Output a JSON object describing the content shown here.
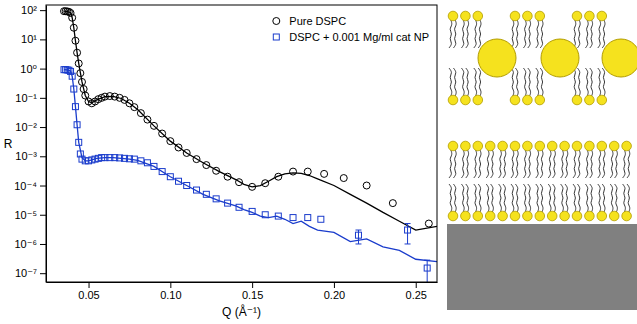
{
  "chart_data": {
    "type": "scatter",
    "x_label": "Q (Å⁻¹)",
    "y_label": "R",
    "log": "y",
    "grid": false,
    "legend": "upper right",
    "xlim": [
      0.024,
      0.263
    ],
    "ylim": [
      5e-08,
      150
    ],
    "xticks": [
      0.05,
      {
        "value": 0.1,
        "label": "0.10"
      },
      0.15,
      {
        "value": 0.2,
        "label": "0.20"
      },
      0.25
    ],
    "yticks": [
      {
        "value": 100,
        "label": "10²"
      },
      {
        "value": 10,
        "label": "10¹"
      },
      {
        "value": 1,
        "label": "10⁰"
      },
      {
        "value": 0.1,
        "label": "10⁻¹"
      },
      {
        "value": 0.01,
        "label": "10⁻²"
      },
      {
        "value": 0.001,
        "label": "10⁻³"
      },
      {
        "value": 0.0001,
        "label": "10⁻⁴"
      },
      {
        "value": 1e-05,
        "label": "10⁻⁵"
      },
      {
        "value": 1e-06,
        "label": "10⁻⁶"
      },
      {
        "value": 1e-07,
        "label": "10⁻⁷"
      }
    ],
    "series": [
      {
        "name": "Pure DSPC",
        "type": "scatter",
        "marker": "circle",
        "color": "#000000",
        "x": [
          0.035,
          0.036,
          0.037,
          0.038,
          0.039,
          0.04,
          0.041,
          0.042,
          0.043,
          0.044,
          0.045,
          0.046,
          0.047,
          0.048,
          0.05,
          0.052,
          0.054,
          0.056,
          0.058,
          0.06,
          0.063,
          0.066,
          0.069,
          0.072,
          0.075,
          0.078,
          0.082,
          0.086,
          0.09,
          0.095,
          0.1,
          0.105,
          0.11,
          0.116,
          0.122,
          0.128,
          0.135,
          0.142,
          0.15,
          0.158,
          0.166,
          0.175,
          0.184,
          0.194,
          0.206,
          0.22,
          0.236,
          0.258
        ],
        "values": [
          92,
          92,
          90,
          88,
          80,
          55,
          25,
          9,
          3.5,
          1.5,
          0.7,
          0.35,
          0.2,
          0.12,
          0.075,
          0.065,
          0.075,
          0.09,
          0.1,
          0.11,
          0.115,
          0.11,
          0.1,
          0.085,
          0.065,
          0.048,
          0.03,
          0.018,
          0.011,
          0.006,
          0.0033,
          0.002,
          0.0013,
          0.0008,
          0.0005,
          0.00032,
          0.0002,
          0.00013,
          9e-05,
          0.00012,
          0.0002,
          0.0003,
          0.0003,
          0.00025,
          0.00018,
          0.0001,
          2.5e-05,
          5e-06
        ]
      },
      {
        "name": "DSPC + 0.001 Mg/ml cat NP",
        "type": "scatter",
        "marker": "square",
        "color": "#1a3ccc",
        "x": [
          0.035,
          0.036,
          0.037,
          0.038,
          0.039,
          0.04,
          0.041,
          0.042,
          0.043,
          0.044,
          0.045,
          0.046,
          0.048,
          0.05,
          0.052,
          0.054,
          0.056,
          0.058,
          0.06,
          0.063,
          0.066,
          0.069,
          0.072,
          0.075,
          0.078,
          0.082,
          0.086,
          0.09,
          0.095,
          0.1,
          0.105,
          0.11,
          0.116,
          0.122,
          0.128,
          0.135,
          0.142,
          0.15,
          0.158,
          0.166,
          0.175,
          0.184,
          0.192,
          0.215,
          0.245,
          0.257
        ],
        "values": [
          0.92,
          0.92,
          0.9,
          0.88,
          0.8,
          0.55,
          0.2,
          0.05,
          0.012,
          0.003,
          0.0012,
          0.0008,
          0.0007,
          0.0007,
          0.00075,
          0.0008,
          0.00085,
          0.0009,
          0.0009,
          0.0009,
          0.0009,
          0.00088,
          0.00085,
          0.00082,
          0.0008,
          0.0007,
          0.0006,
          0.00045,
          0.0003,
          0.0002,
          0.00014,
          0.0001,
          7e-05,
          5e-05,
          3.5e-05,
          2.5e-05,
          1.8e-05,
          1.3e-05,
          1e-05,
          9e-06,
          8e-06,
          8e-06,
          7e-06,
          2e-06,
          3e-06,
          1.5e-07
        ],
        "errors": [
          null,
          null,
          null,
          null,
          null,
          null,
          null,
          null,
          null,
          null,
          null,
          null,
          null,
          null,
          null,
          null,
          null,
          null,
          null,
          null,
          null,
          null,
          null,
          null,
          null,
          null,
          null,
          null,
          null,
          null,
          null,
          null,
          null,
          null,
          null,
          null,
          null,
          null,
          null,
          null,
          null,
          null,
          null,
          1e-06,
          2e-06,
          1.3e-07
        ]
      },
      {
        "type": "line",
        "line_style": "solid",
        "color": "#000000",
        "x": [
          0.035,
          0.037,
          0.039,
          0.04,
          0.041,
          0.042,
          0.043,
          0.044,
          0.046,
          0.048,
          0.05,
          0.052,
          0.055,
          0.06,
          0.065,
          0.07,
          0.075,
          0.08,
          0.09,
          0.1,
          0.11,
          0.12,
          0.13,
          0.14,
          0.145,
          0.15,
          0.155,
          0.16,
          0.165,
          0.17,
          0.175,
          0.18,
          0.185,
          0.19,
          0.2,
          0.21,
          0.22,
          0.23,
          0.24,
          0.25,
          0.263
        ],
        "values": [
          92,
          90,
          82,
          55,
          25,
          9,
          3.5,
          1.5,
          0.35,
          0.12,
          0.075,
          0.068,
          0.085,
          0.11,
          0.112,
          0.095,
          0.065,
          0.04,
          0.011,
          0.0033,
          0.0013,
          0.0006,
          0.0003,
          0.00016,
          0.00011,
          9e-05,
          0.0001,
          0.00014,
          0.0002,
          0.00025,
          0.00027,
          0.00026,
          0.00022,
          0.00017,
          0.0001,
          5e-05,
          2.5e-05,
          1.2e-05,
          6e-06,
          3e-06,
          4e-06
        ]
      },
      {
        "type": "line",
        "line_style": "solid",
        "color": "#1a3ccc",
        "x": [
          0.035,
          0.037,
          0.039,
          0.04,
          0.041,
          0.042,
          0.043,
          0.044,
          0.046,
          0.048,
          0.05,
          0.052,
          0.055,
          0.06,
          0.065,
          0.07,
          0.075,
          0.08,
          0.09,
          0.1,
          0.11,
          0.12,
          0.13,
          0.14,
          0.145,
          0.15,
          0.155,
          0.16,
          0.165,
          0.17,
          0.175,
          0.18,
          0.185,
          0.19,
          0.2,
          0.21,
          0.22,
          0.23,
          0.24,
          0.25,
          0.263
        ],
        "values": [
          0.92,
          0.9,
          0.82,
          0.55,
          0.2,
          0.05,
          0.012,
          0.003,
          0.0009,
          0.0007,
          0.0007,
          0.00075,
          0.00085,
          0.0009,
          0.0009,
          0.00085,
          0.0008,
          0.00072,
          0.00045,
          0.0002,
          0.0001,
          5e-05,
          3e-05,
          2e-05,
          1.5e-05,
          1.2e-05,
          9e-06,
          8e-06,
          9e-06,
          7e-06,
          5e-06,
          6e-06,
          4e-06,
          3e-06,
          2.5e-06,
          1.2e-06,
          1.5e-06,
          8e-07,
          6e-07,
          3e-07,
          2.5e-07
        ]
      }
    ]
  }
}
